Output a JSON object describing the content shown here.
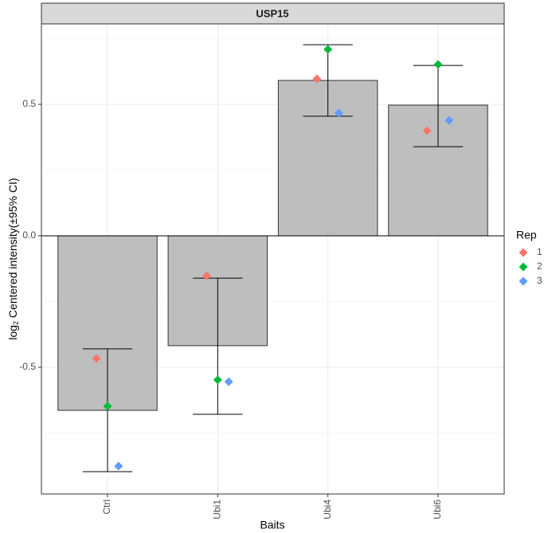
{
  "chart_data": {
    "type": "bar",
    "title": "USP15",
    "x_label": "Baits",
    "y_label_parts": [
      "log",
      "2",
      " Centered intensity(±95% CI)"
    ],
    "categories": [
      "Ctrl",
      "Ubi1",
      "Ubi4",
      "Ubi6"
    ],
    "values": [
      -0.664,
      -0.418,
      0.591,
      0.497
    ],
    "ci_lower": [
      -0.897,
      -0.679,
      0.455,
      0.339
    ],
    "ci_upper": [
      -0.43,
      -0.161,
      0.727,
      0.648
    ],
    "color": "#bebebe",
    "hline": 0,
    "legend_title": "Rep",
    "legend_position": "right",
    "series": [
      {
        "name": "1",
        "color": "#F8766D",
        "values": [
          -0.467,
          -0.152,
          0.597,
          0.4
        ]
      },
      {
        "name": "2",
        "color": "#00BA38",
        "values": [
          -0.648,
          -0.548,
          0.709,
          0.652
        ]
      },
      {
        "name": "3",
        "color": "#619CFF",
        "values": [
          -0.876,
          -0.555,
          0.467,
          0.439
        ]
      }
    ],
    "ylim": [
      -0.982,
      0.806
    ],
    "yticks": [
      -0.5,
      {
        "value": 0,
        "label": "0.0"
      },
      0.5
    ],
    "minor_yticks": [
      -0.75,
      -0.25,
      0.25,
      0.75
    ],
    "grid": true
  }
}
